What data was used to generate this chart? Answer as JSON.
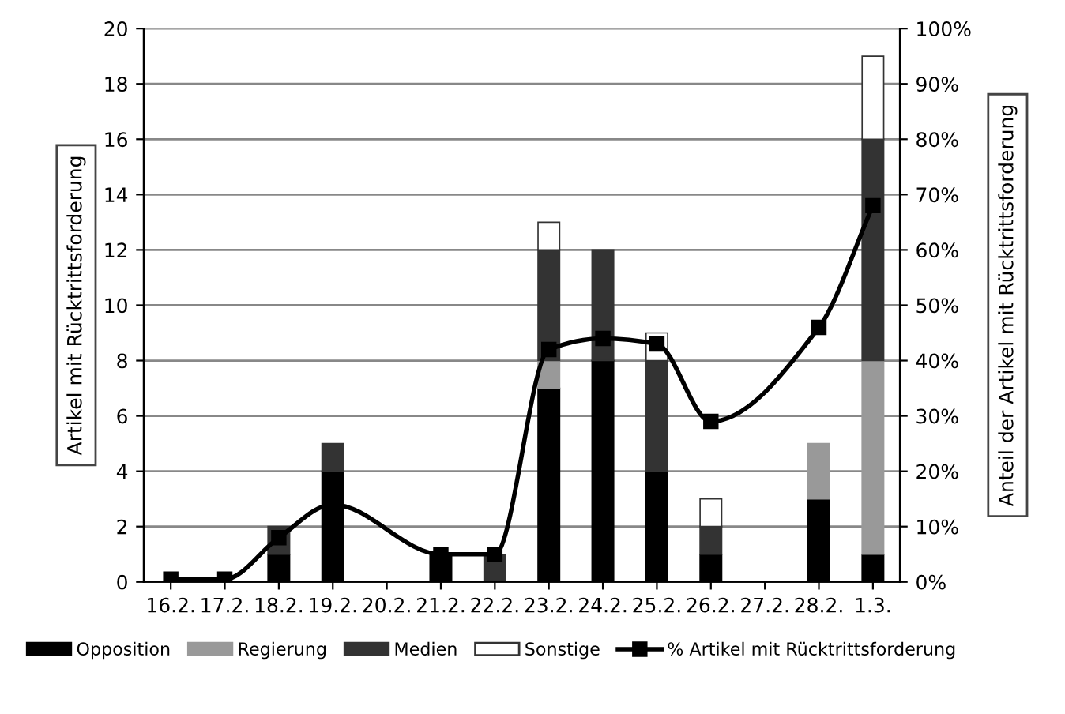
{
  "chart_data": {
    "type": "bar",
    "stacked": true,
    "categories": [
      "16.2.",
      "17.2.",
      "18.2.",
      "19.2.",
      "20.2.",
      "21.2.",
      "22.2.",
      "23.2.",
      "24.2.",
      "25.2.",
      "26.2.",
      "27.2.",
      "28.2.",
      "1.3."
    ],
    "series": [
      {
        "name": "Opposition",
        "color": "#000000",
        "values": [
          0,
          0,
          1,
          4,
          0,
          1,
          0,
          7,
          8,
          4,
          1,
          0,
          3,
          1
        ]
      },
      {
        "name": "Regierung",
        "color": "#999999",
        "values": [
          0,
          0,
          0,
          0,
          0,
          0,
          0,
          1,
          0,
          0,
          0,
          0,
          2,
          7
        ]
      },
      {
        "name": "Medien",
        "color": "#333333",
        "values": [
          0,
          0,
          1,
          1,
          0,
          0,
          1,
          4,
          4,
          4,
          1,
          0,
          0,
          8
        ]
      },
      {
        "name": "Sonstige",
        "color": "#ffffff",
        "values": [
          0,
          0,
          0,
          0,
          0,
          0,
          0,
          1,
          0,
          1,
          1,
          0,
          0,
          3
        ]
      },
      {
        "name": "% Artikel mit Rücktrittsforderung",
        "type": "line",
        "axis": "y2",
        "color": "#000000",
        "marker": "square",
        "values": [
          0.5,
          0.5,
          8,
          14,
          null,
          5,
          5,
          42,
          44,
          43,
          29,
          null,
          46,
          68
        ]
      }
    ],
    "ylim": [
      0,
      20
    ],
    "yticks": [
      0,
      2,
      4,
      6,
      8,
      10,
      12,
      14,
      16,
      18,
      20
    ],
    "y2lim": [
      0,
      100
    ],
    "y2ticks": [
      {
        "value": 0,
        "label": "0%"
      },
      {
        "value": 10,
        "label": "10%"
      },
      {
        "value": 20,
        "label": "20%"
      },
      {
        "value": 30,
        "label": "30%"
      },
      {
        "value": 40,
        "label": "40%"
      },
      {
        "value": 50,
        "label": "50%"
      },
      {
        "value": 60,
        "label": "60%"
      },
      {
        "value": 70,
        "label": "70%"
      },
      {
        "value": 80,
        "label": "80%"
      },
      {
        "value": 90,
        "label": "90%"
      },
      {
        "value": 100,
        "label": "100%"
      }
    ],
    "ylabel": "Artikel mit Rücktrittsforderung",
    "y2label": "Anteil der Artikel mit Rücktrittsforderung",
    "grid": "y",
    "legend": "bottom"
  }
}
